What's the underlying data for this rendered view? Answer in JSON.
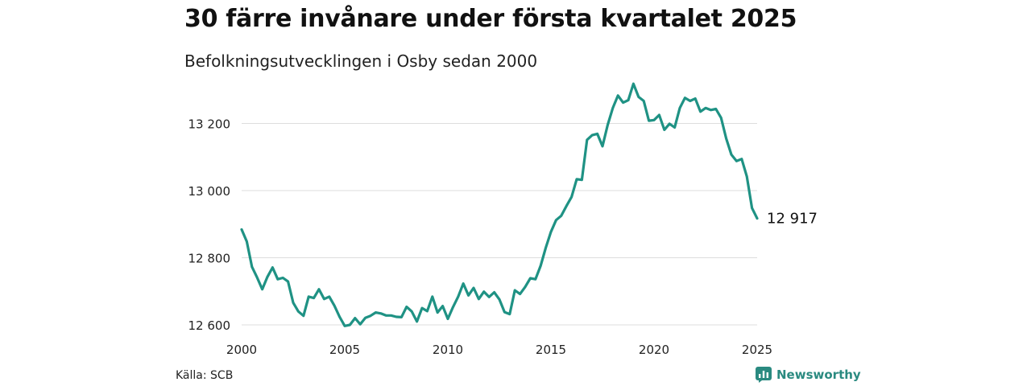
{
  "title": "30 färre invånare under första kvartalet 2025",
  "subtitle": "Befolkningsutvecklingen i Osby sedan 2000",
  "source": "Källa: SCB",
  "brand": {
    "name": "Newsworthy",
    "icon": "newsworthy-logo-icon",
    "color": "#2a8a80"
  },
  "colors": {
    "line": "#1f9284",
    "grid": "#dddddd"
  },
  "chart_data": {
    "type": "line",
    "title": "30 färre invånare under första kvartalet 2025",
    "subtitle": "Befolkningsutvecklingen i Osby sedan 2000",
    "xlabel": "",
    "ylabel": "",
    "xlim": [
      2000,
      2025
    ],
    "ylim": [
      12600,
      13340
    ],
    "grid": true,
    "x_ticks": [
      2000,
      2005,
      2010,
      2015,
      2020,
      2025
    ],
    "x_tick_labels": [
      "2000",
      "2005",
      "2010",
      "2015",
      "2020",
      "2025"
    ],
    "y_ticks": [
      12600,
      12800,
      13000,
      13200
    ],
    "y_tick_labels": [
      "12 600",
      "12 800",
      "13 000",
      "13 200"
    ],
    "end_label": "12 917",
    "series": [
      {
        "x": [
          2000.0,
          2000.25,
          2000.5,
          2000.75,
          2001.0,
          2001.25,
          2001.5,
          2001.75,
          2002.0,
          2002.25,
          2002.5,
          2002.75,
          2003.0,
          2003.25,
          2003.5,
          2003.75,
          2004.0,
          2004.25,
          2004.5,
          2004.75,
          2005.0,
          2005.25,
          2005.5,
          2005.75,
          2006.0,
          2006.25,
          2006.5,
          2006.75,
          2007.0,
          2007.25,
          2007.5,
          2007.75,
          2008.0,
          2008.25,
          2008.5,
          2008.75,
          2009.0,
          2009.25,
          2009.5,
          2009.75,
          2010.0,
          2010.25,
          2010.5,
          2010.75,
          2011.0,
          2011.25,
          2011.5,
          2011.75,
          2012.0,
          2012.25,
          2012.5,
          2012.75,
          2013.0,
          2013.25,
          2013.5,
          2013.75,
          2014.0,
          2014.25,
          2014.5,
          2014.75,
          2015.0,
          2015.25,
          2015.5,
          2015.75,
          2016.0,
          2016.25,
          2016.5,
          2016.75,
          2017.0,
          2017.25,
          2017.5,
          2017.75,
          2018.0,
          2018.25,
          2018.5,
          2018.75,
          2019.0,
          2019.25,
          2019.5,
          2019.75,
          2020.0,
          2020.25,
          2020.5,
          2020.75,
          2021.0,
          2021.25,
          2021.5,
          2021.75,
          2022.0,
          2022.25,
          2022.5,
          2022.75,
          2023.0,
          2023.25,
          2023.5,
          2023.75,
          2024.0,
          2024.25,
          2024.5,
          2024.75,
          2025.0
        ],
        "values": [
          12884,
          12848,
          12773,
          12741,
          12706,
          12743,
          12771,
          12736,
          12740,
          12729,
          12666,
          12640,
          12627,
          12684,
          12680,
          12706,
          12677,
          12684,
          12657,
          12624,
          12597,
          12600,
          12620,
          12602,
          12621,
          12627,
          12637,
          12634,
          12628,
          12628,
          12624,
          12623,
          12654,
          12640,
          12610,
          12650,
          12641,
          12684,
          12637,
          12656,
          12618,
          12653,
          12684,
          12723,
          12688,
          12710,
          12677,
          12699,
          12683,
          12697,
          12676,
          12638,
          12632,
          12703,
          12692,
          12713,
          12739,
          12736,
          12776,
          12830,
          12877,
          12912,
          12925,
          12954,
          12981,
          13034,
          13032,
          13151,
          13165,
          13169,
          13132,
          13195,
          13246,
          13283,
          13262,
          13269,
          13318,
          13279,
          13267,
          13208,
          13210,
          13225,
          13181,
          13199,
          13188,
          13246,
          13276,
          13267,
          13274,
          13235,
          13246,
          13240,
          13243,
          13217,
          13155,
          13107,
          13088,
          13094,
          13042,
          12948,
          12917
        ]
      }
    ]
  }
}
